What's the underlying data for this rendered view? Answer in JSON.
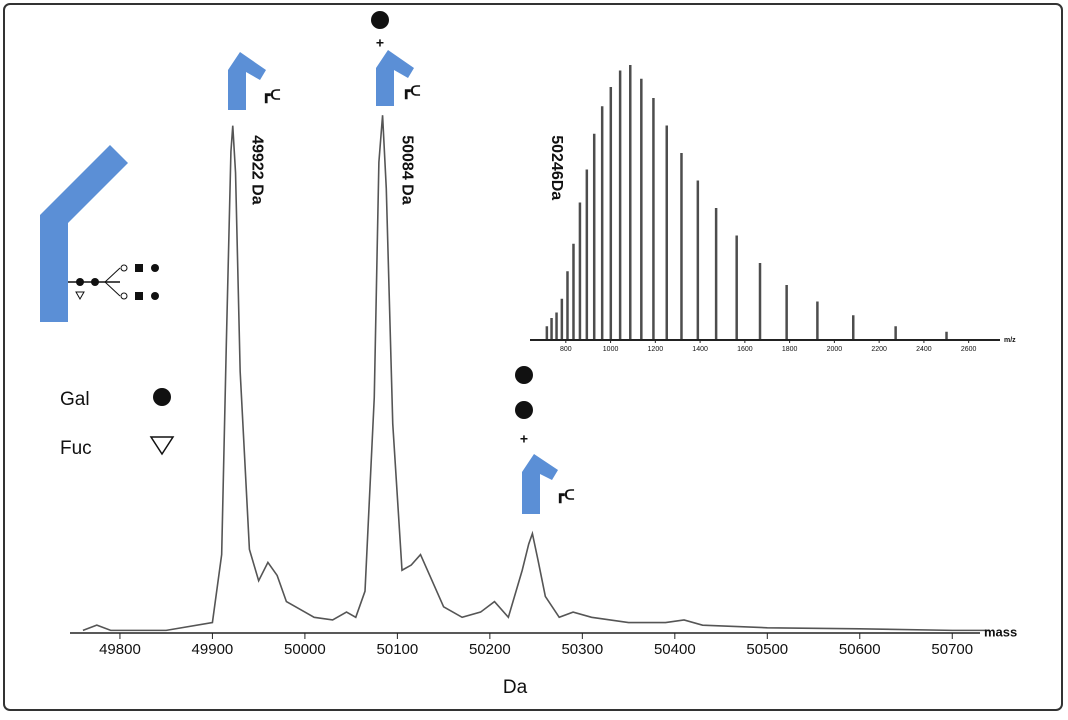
{
  "chart_data": [
    {
      "type": "line",
      "x_label": "Da",
      "x_unit_label": "mass",
      "color": "#555555",
      "x": [
        49760,
        49775,
        49790,
        49850,
        49900,
        49910,
        49915,
        49920,
        49922,
        49925,
        49930,
        49940,
        49950,
        49960,
        49970,
        49980,
        49990,
        50000,
        50010,
        50030,
        50045,
        50055,
        50065,
        50075,
        50080,
        50084,
        50088,
        50095,
        50105,
        50115,
        50125,
        50135,
        50150,
        50170,
        50190,
        50205,
        50220,
        50235,
        50242,
        50246,
        50252,
        50260,
        50275,
        50290,
        50310,
        50350,
        50390,
        50410,
        50430,
        50500,
        50600,
        50700,
        50740
      ],
      "values": [
        0.5,
        1.5,
        0.5,
        0.5,
        2,
        15,
        55,
        92,
        97,
        88,
        50,
        16,
        10,
        13.5,
        11,
        6,
        5,
        4,
        3,
        2.5,
        4,
        3,
        8,
        45,
        90,
        99,
        85,
        40,
        12,
        13,
        15,
        11,
        5,
        3,
        4,
        6,
        3,
        12,
        17,
        19,
        14,
        7,
        3,
        4,
        3,
        2,
        2,
        2.5,
        1.5,
        1,
        0.8,
        0.5,
        0.5
      ],
      "xlim": [
        49746,
        50730
      ],
      "ylim": [
        0,
        100
      ],
      "xticks": [
        49800,
        49900,
        50000,
        50100,
        50200,
        50300,
        50400,
        50500,
        50600,
        50700
      ],
      "annotations": [
        {
          "x": 49922,
          "label": "49922 Da"
        },
        {
          "x": 50084,
          "label": "50084 Da"
        },
        {
          "x": 50246,
          "label": "50246Da"
        }
      ]
    },
    {
      "type": "stick",
      "x_unit_label": "m/z",
      "color": "#111111",
      "x": [
        715.3,
        736.3,
        758.6,
        782.3,
        807.5,
        834.3,
        863.1,
        893.9,
        926.9,
        962.5,
        1001,
        1042.7,
        1088,
        1137.4,
        1191.5,
        1251,
        1316.8,
        1389.9,
        1471.6,
        1563.5,
        1667.7,
        1786.7,
        1924.1,
        2084.3,
        2273.7,
        2501
      ],
      "values": [
        5,
        8,
        10,
        15,
        25,
        35,
        50,
        62,
        75,
        85,
        92,
        98,
        100,
        95,
        88,
        78,
        68,
        58,
        48,
        38,
        28,
        20,
        14,
        9,
        5,
        3
      ],
      "xlim": [
        640,
        2740
      ],
      "ylim": [
        0,
        100
      ],
      "xticks": [
        800,
        1000,
        1200,
        1400,
        1600,
        1800,
        2000,
        2200,
        2400,
        2600
      ]
    }
  ],
  "glycan_key": [
    {
      "label": "Gal"
    },
    {
      "label": "Fuc"
    }
  ]
}
